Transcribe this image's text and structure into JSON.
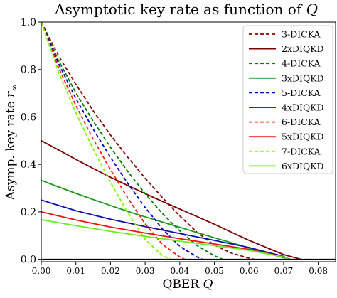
{
  "chart_data": {
    "type": "line",
    "title": "Asymptotic key rate as function of Q",
    "title_main": "Asymptotic key rate as function of ",
    "title_var": "Q",
    "xlabel": "QBER Q",
    "xlabel_main": "QBER ",
    "xlabel_var": "Q",
    "ylabel": "Asymp. key rate r∞",
    "ylabel_main": "Asymp. key rate ",
    "ylabel_var": "r",
    "ylabel_sub": "∞",
    "xlim": [
      0,
      0.085
    ],
    "ylim": [
      -0.01,
      1.0
    ],
    "xticks": [
      0.0,
      0.01,
      0.02,
      0.03,
      0.04,
      0.05,
      0.06,
      0.07,
      0.08
    ],
    "xtick_labels": [
      "0.00",
      "0.01",
      "0.02",
      "0.03",
      "0.04",
      "0.05",
      "0.06",
      "0.07",
      "0.08"
    ],
    "yticks": [
      0.0,
      0.2,
      0.4,
      0.6,
      0.8,
      1.0
    ],
    "ytick_labels": [
      "0.0",
      "0.2",
      "0.4",
      "0.6",
      "0.8",
      "1.0"
    ],
    "grid": false,
    "legend_position": "top-right",
    "reference_line": {
      "y": 0.0,
      "color": "#000000"
    },
    "series": [
      {
        "name": "3-DICKA",
        "color": "#8b0000",
        "style": "dashed",
        "x": [
          0,
          0.005,
          0.01,
          0.015,
          0.02,
          0.025,
          0.03,
          0.035,
          0.04,
          0.045,
          0.05,
          0.055,
          0.06,
          0.0615
        ],
        "y": [
          1.0,
          0.858,
          0.738,
          0.626,
          0.524,
          0.43,
          0.342,
          0.26,
          0.183,
          0.114,
          0.06,
          0.026,
          0.005,
          0.0
        ]
      },
      {
        "name": "2xDIQKD",
        "color": "#7a0000",
        "style": "solid",
        "x": [
          0,
          0.005,
          0.01,
          0.015,
          0.02,
          0.025,
          0.03,
          0.035,
          0.04,
          0.045,
          0.05,
          0.055,
          0.06,
          0.065,
          0.07,
          0.075
        ],
        "y": [
          0.5,
          0.461,
          0.421,
          0.383,
          0.346,
          0.311,
          0.277,
          0.244,
          0.212,
          0.18,
          0.148,
          0.114,
          0.08,
          0.05,
          0.02,
          0.0
        ]
      },
      {
        "name": "4-DICKA",
        "color": "#008000",
        "style": "dashed",
        "x": [
          0,
          0.005,
          0.01,
          0.015,
          0.02,
          0.025,
          0.03,
          0.035,
          0.04,
          0.045,
          0.05,
          0.0525
        ],
        "y": [
          1.0,
          0.838,
          0.702,
          0.583,
          0.472,
          0.37,
          0.277,
          0.193,
          0.12,
          0.058,
          0.015,
          0.0
        ]
      },
      {
        "name": "3xDIQKD",
        "color": "#1a9a1a",
        "style": "solid",
        "x": [
          0,
          0.005,
          0.01,
          0.015,
          0.02,
          0.025,
          0.03,
          0.035,
          0.04,
          0.045,
          0.05,
          0.055,
          0.06,
          0.065,
          0.07,
          0.072
        ],
        "y": [
          0.333,
          0.305,
          0.278,
          0.252,
          0.227,
          0.202,
          0.179,
          0.157,
          0.135,
          0.113,
          0.091,
          0.07,
          0.048,
          0.027,
          0.007,
          0.0
        ]
      },
      {
        "name": "5-DICKA",
        "color": "#0000cc",
        "style": "dashed",
        "x": [
          0,
          0.005,
          0.01,
          0.015,
          0.02,
          0.025,
          0.03,
          0.035,
          0.04,
          0.045,
          0.0465
        ],
        "y": [
          1.0,
          0.825,
          0.678,
          0.549,
          0.43,
          0.32,
          0.219,
          0.128,
          0.055,
          0.01,
          0.0
        ]
      },
      {
        "name": "4xDIQKD",
        "color": "#1010b0",
        "style": "solid",
        "x": [
          0,
          0.01,
          0.02,
          0.03,
          0.04,
          0.05,
          0.06,
          0.07,
          0.0715
        ],
        "y": [
          0.25,
          0.205,
          0.169,
          0.138,
          0.109,
          0.08,
          0.05,
          0.012,
          0.0
        ]
      },
      {
        "name": "6-DICKA",
        "color": "#ff1a1a",
        "style": "dashed",
        "x": [
          0,
          0.005,
          0.01,
          0.015,
          0.02,
          0.025,
          0.03,
          0.035,
          0.04,
          0.0415
        ],
        "y": [
          1.0,
          0.808,
          0.648,
          0.507,
          0.378,
          0.258,
          0.15,
          0.063,
          0.01,
          0.0
        ]
      },
      {
        "name": "5xDIQKD",
        "color": "#ee1111",
        "style": "solid",
        "x": [
          0,
          0.01,
          0.02,
          0.03,
          0.04,
          0.05,
          0.06,
          0.07,
          0.0715
        ],
        "y": [
          0.2,
          0.166,
          0.136,
          0.111,
          0.087,
          0.065,
          0.042,
          0.01,
          0.0
        ]
      },
      {
        "name": "7-DICKA",
        "color": "#7cfc00",
        "style": "dashed",
        "x": [
          0,
          0.005,
          0.01,
          0.015,
          0.02,
          0.025,
          0.03,
          0.035,
          0.0375
        ],
        "y": [
          1.0,
          0.79,
          0.618,
          0.465,
          0.325,
          0.196,
          0.085,
          0.015,
          0.0
        ]
      },
      {
        "name": "6xDIQKD",
        "color": "#66ee22",
        "style": "solid",
        "x": [
          0,
          0.01,
          0.02,
          0.03,
          0.04,
          0.05,
          0.06,
          0.07,
          0.0715
        ],
        "y": [
          0.167,
          0.142,
          0.118,
          0.097,
          0.077,
          0.058,
          0.038,
          0.01,
          0.0
        ]
      }
    ]
  }
}
